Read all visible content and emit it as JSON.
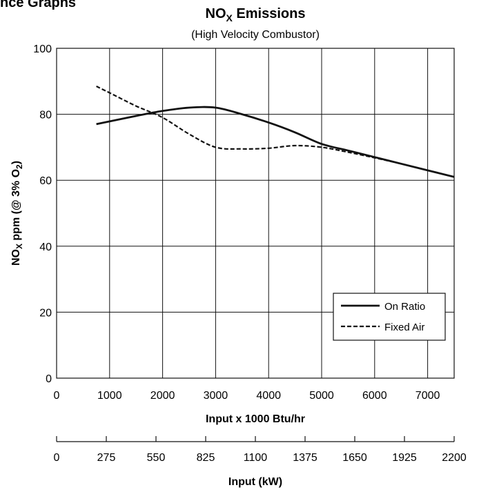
{
  "header_fragment": "nce Graphs",
  "chart_data": {
    "type": "line",
    "title_main": "NO",
    "title_sub": "X",
    "title_tail": " Emissions",
    "subtitle": "(High Velocity Combustor)",
    "ylabel_main": "NO",
    "ylabel_sub1": "X",
    "ylabel_mid": " ppm (@ 3% O",
    "ylabel_sub2": "2",
    "ylabel_tail": ")",
    "xlabel": "Input x 1000 Btu/hr",
    "xlabel2": "Input (kW)",
    "xlim": [
      0,
      7500
    ],
    "ylim": [
      0,
      100
    ],
    "x_ticks": [
      "0",
      "1000",
      "2000",
      "3000",
      "4000",
      "5000",
      "6000",
      "7000"
    ],
    "y_ticks": [
      "0",
      "20",
      "40",
      "60",
      "80",
      "100"
    ],
    "x2_ticks": [
      "0",
      "275",
      "550",
      "825",
      "1100",
      "1375",
      "1650",
      "1925",
      "2200"
    ],
    "grid": true,
    "legend_position": "bottom-right",
    "series": [
      {
        "name": "On Ratio",
        "style": "solid",
        "points": [
          [
            750,
            77
          ],
          [
            1500,
            79.5
          ],
          [
            2000,
            81
          ],
          [
            2500,
            82
          ],
          [
            3000,
            82
          ],
          [
            3500,
            80
          ],
          [
            4000,
            77.5
          ],
          [
            4500,
            74.5
          ],
          [
            5000,
            71
          ],
          [
            5500,
            69
          ],
          [
            6000,
            67
          ],
          [
            6500,
            65
          ],
          [
            7000,
            63
          ],
          [
            7500,
            61
          ]
        ]
      },
      {
        "name": "Fixed Air",
        "style": "dashed",
        "points": [
          [
            750,
            88.5
          ],
          [
            1000,
            86.5
          ],
          [
            1500,
            82.5
          ],
          [
            2000,
            79
          ],
          [
            2500,
            74
          ],
          [
            3000,
            70
          ],
          [
            3500,
            69.5
          ],
          [
            4000,
            69.7
          ],
          [
            4500,
            70.5
          ],
          [
            5000,
            70
          ],
          [
            5500,
            68.5
          ],
          [
            6000,
            66.8
          ],
          [
            6500,
            65
          ],
          [
            7000,
            63
          ],
          [
            7500,
            61
          ]
        ]
      }
    ]
  }
}
